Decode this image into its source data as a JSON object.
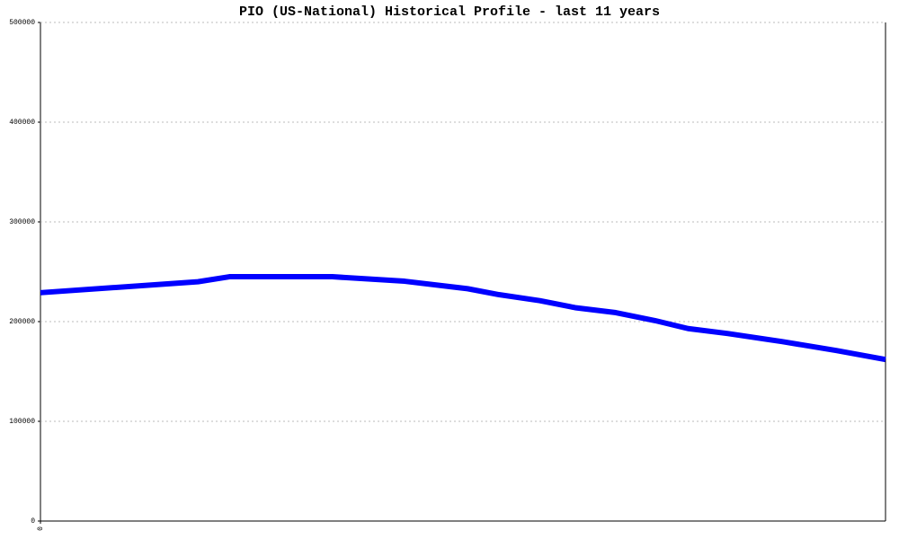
{
  "chart_data": {
    "type": "line",
    "title": "PIO (US-National) Historical Profile - last 11 years",
    "x": [
      0,
      2.05,
      2.46,
      3.8,
      4.74,
      5.56,
      5.97,
      6.5,
      6.96,
      7.49,
      8.0,
      8.43,
      8.95,
      9.65,
      10.36,
      11
    ],
    "series": [
      {
        "color": "#0000ff",
        "values": [
          229000,
          240000,
          245000,
          245000,
          240500,
          233000,
          227000,
          221000,
          214000,
          209000,
          201000,
          193000,
          188000,
          180000,
          171000,
          162000
        ]
      }
    ],
    "xlim": [
      0,
      11
    ],
    "xticks": [
      0
    ],
    "ylim": [
      0,
      500000
    ],
    "yticks": [
      0,
      100000,
      200000,
      300000,
      400000,
      500000
    ],
    "grid": true
  }
}
